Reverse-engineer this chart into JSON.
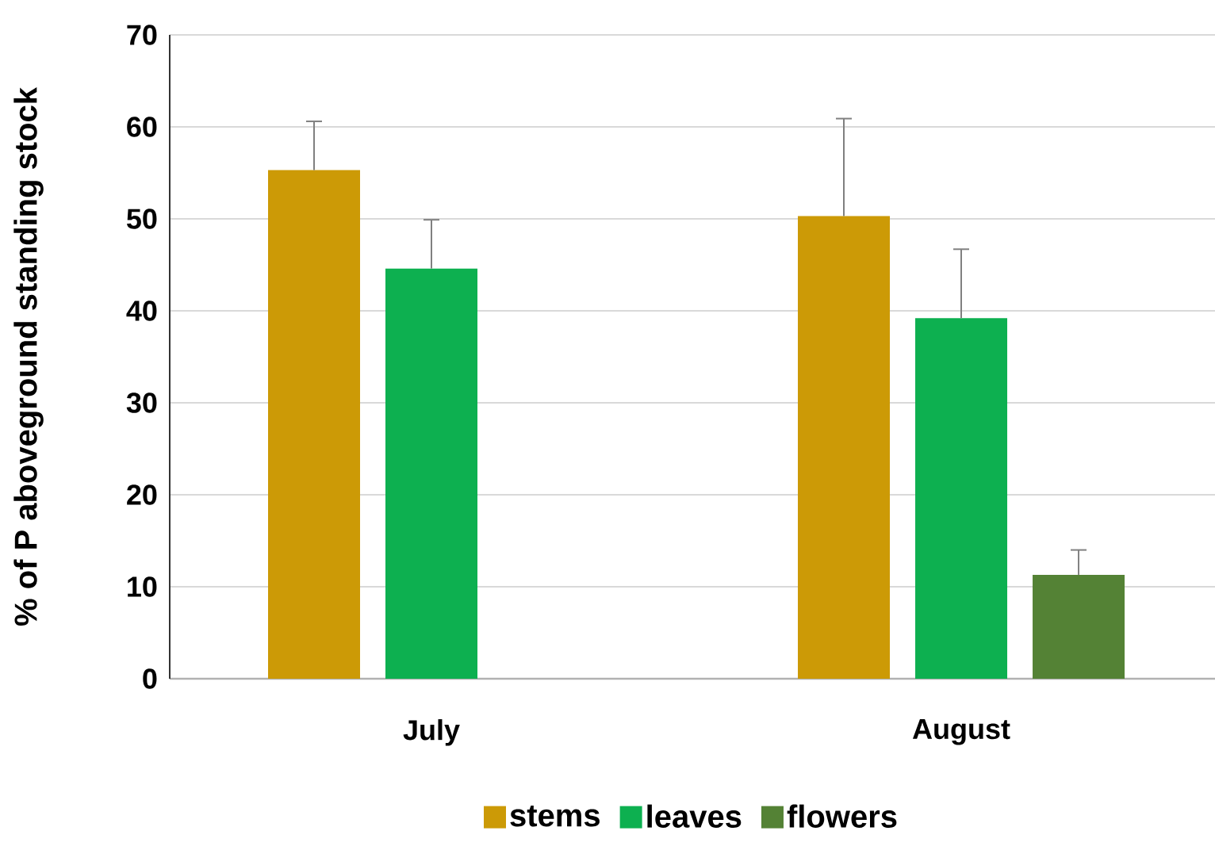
{
  "chart_data": {
    "type": "bar",
    "ylabel": "% of P aboveground standing stock",
    "categories": [
      "July",
      "August"
    ],
    "series": [
      {
        "name": "stems",
        "color": "#cc9a06",
        "values": [
          55.3,
          50.3
        ],
        "errors": [
          [
            55.3,
            60.6
          ],
          [
            50.3,
            60.9
          ]
        ]
      },
      {
        "name": "leaves",
        "color": "#0db050",
        "values": [
          44.6,
          39.2
        ],
        "errors": [
          [
            44.6,
            49.9
          ],
          [
            39.2,
            46.7
          ]
        ]
      },
      {
        "name": "flowers",
        "color": "#548235",
        "values": [
          null,
          11.3
        ],
        "errors": [
          null,
          [
            11.3,
            14.0
          ]
        ]
      }
    ],
    "ylim": [
      0,
      70
    ],
    "yticks": [
      0,
      10,
      20,
      30,
      40,
      50,
      60,
      70
    ],
    "grid": "y",
    "legend": "bottom"
  }
}
